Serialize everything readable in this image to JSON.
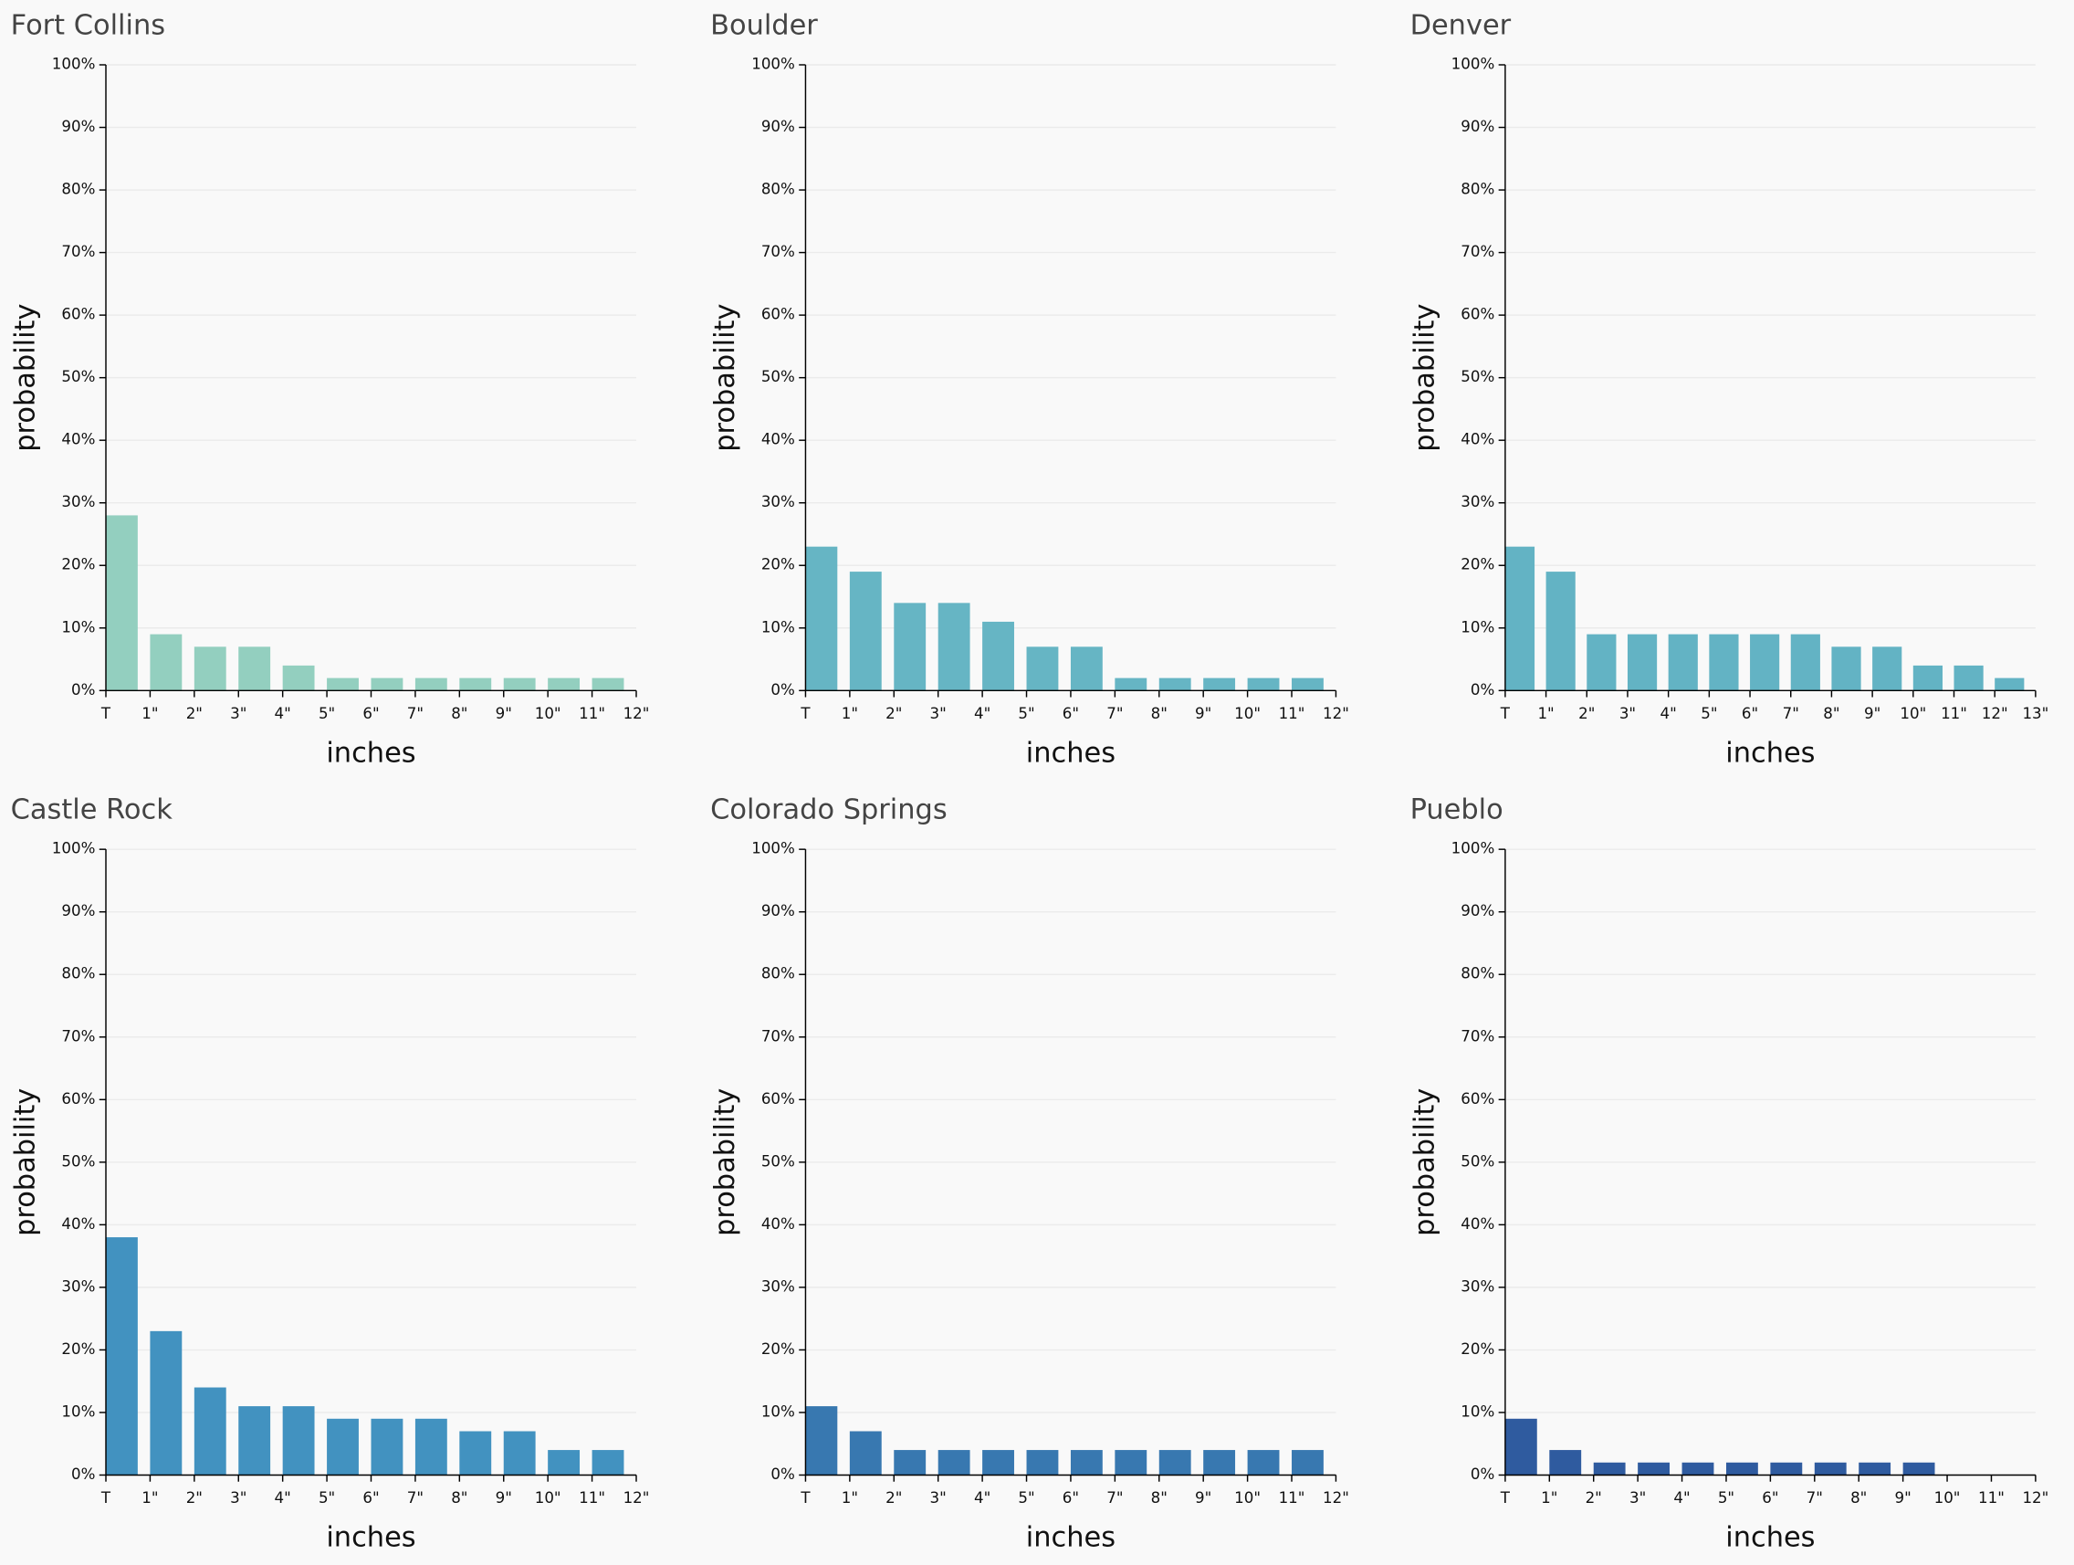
{
  "chart_data": [
    {
      "type": "histogram",
      "title": "Fort Collins",
      "xlabel": "inches",
      "ylabel": "probability",
      "color": "#93cfbf",
      "grid": true,
      "bins": [
        0,
        1,
        2,
        3,
        4,
        5,
        6,
        7,
        8,
        9,
        10,
        11,
        12
      ],
      "values": [
        28,
        9,
        7,
        7,
        4,
        2,
        2,
        2,
        2,
        2,
        2,
        2
      ],
      "xlim": [
        0,
        12
      ],
      "xticks": [
        {
          "value": 0,
          "label": "T"
        },
        {
          "value": 1,
          "label": "1\""
        },
        {
          "value": 2,
          "label": "2\""
        },
        {
          "value": 3,
          "label": "3\""
        },
        {
          "value": 4,
          "label": "4\""
        },
        {
          "value": 5,
          "label": "5\""
        },
        {
          "value": 6,
          "label": "6\""
        },
        {
          "value": 7,
          "label": "7\""
        },
        {
          "value": 8,
          "label": "8\""
        },
        {
          "value": 9,
          "label": "9\""
        },
        {
          "value": 10,
          "label": "10\""
        },
        {
          "value": 11,
          "label": "11\""
        },
        {
          "value": 12,
          "label": "12\""
        }
      ],
      "ylim": [
        0,
        100
      ],
      "yticks": [
        {
          "value": 0,
          "label": "0%"
        },
        {
          "value": 10,
          "label": "10%"
        },
        {
          "value": 20,
          "label": "20%"
        },
        {
          "value": 30,
          "label": "30%"
        },
        {
          "value": 40,
          "label": "40%"
        },
        {
          "value": 50,
          "label": "50%"
        },
        {
          "value": 60,
          "label": "60%"
        },
        {
          "value": 70,
          "label": "70%"
        },
        {
          "value": 80,
          "label": "80%"
        },
        {
          "value": 90,
          "label": "90%"
        },
        {
          "value": 100,
          "label": "100%"
        }
      ]
    },
    {
      "type": "histogram",
      "title": "Boulder",
      "xlabel": "inches",
      "ylabel": "probability",
      "color": "#66b5c4",
      "grid": true,
      "bins": [
        0,
        1,
        2,
        3,
        4,
        5,
        6,
        7,
        8,
        9,
        10,
        11,
        12
      ],
      "values": [
        23,
        19,
        14,
        14,
        11,
        7,
        7,
        2,
        2,
        2,
        2,
        2
      ],
      "xlim": [
        0,
        12
      ],
      "xticks": [
        {
          "value": 0,
          "label": "T"
        },
        {
          "value": 1,
          "label": "1\""
        },
        {
          "value": 2,
          "label": "2\""
        },
        {
          "value": 3,
          "label": "3\""
        },
        {
          "value": 4,
          "label": "4\""
        },
        {
          "value": 5,
          "label": "5\""
        },
        {
          "value": 6,
          "label": "6\""
        },
        {
          "value": 7,
          "label": "7\""
        },
        {
          "value": 8,
          "label": "8\""
        },
        {
          "value": 9,
          "label": "9\""
        },
        {
          "value": 10,
          "label": "10\""
        },
        {
          "value": 11,
          "label": "11\""
        },
        {
          "value": 12,
          "label": "12\""
        }
      ],
      "ylim": [
        0,
        100
      ],
      "yticks": [
        {
          "value": 0,
          "label": "0%"
        },
        {
          "value": 10,
          "label": "10%"
        },
        {
          "value": 20,
          "label": "20%"
        },
        {
          "value": 30,
          "label": "30%"
        },
        {
          "value": 40,
          "label": "40%"
        },
        {
          "value": 50,
          "label": "50%"
        },
        {
          "value": 60,
          "label": "60%"
        },
        {
          "value": 70,
          "label": "70%"
        },
        {
          "value": 80,
          "label": "80%"
        },
        {
          "value": 90,
          "label": "90%"
        },
        {
          "value": 100,
          "label": "100%"
        }
      ]
    },
    {
      "type": "histogram",
      "title": "Denver",
      "xlabel": "inches",
      "ylabel": "probability",
      "color": "#63b3c4",
      "grid": true,
      "bins": [
        0,
        1,
        2,
        3,
        4,
        5,
        6,
        7,
        8,
        9,
        10,
        11,
        12,
        13
      ],
      "values": [
        23,
        19,
        9,
        9,
        9,
        9,
        9,
        9,
        7,
        7,
        4,
        4,
        2
      ],
      "xlim": [
        0,
        13
      ],
      "xticks": [
        {
          "value": 0,
          "label": "T"
        },
        {
          "value": 1,
          "label": "1\""
        },
        {
          "value": 2,
          "label": "2\""
        },
        {
          "value": 3,
          "label": "3\""
        },
        {
          "value": 4,
          "label": "4\""
        },
        {
          "value": 5,
          "label": "5\""
        },
        {
          "value": 6,
          "label": "6\""
        },
        {
          "value": 7,
          "label": "7\""
        },
        {
          "value": 8,
          "label": "8\""
        },
        {
          "value": 9,
          "label": "9\""
        },
        {
          "value": 10,
          "label": "10\""
        },
        {
          "value": 11,
          "label": "11\""
        },
        {
          "value": 12,
          "label": "12\""
        },
        {
          "value": 13,
          "label": "13\""
        }
      ],
      "ylim": [
        0,
        100
      ],
      "yticks": [
        {
          "value": 0,
          "label": "0%"
        },
        {
          "value": 10,
          "label": "10%"
        },
        {
          "value": 20,
          "label": "20%"
        },
        {
          "value": 30,
          "label": "30%"
        },
        {
          "value": 40,
          "label": "40%"
        },
        {
          "value": 50,
          "label": "50%"
        },
        {
          "value": 60,
          "label": "60%"
        },
        {
          "value": 70,
          "label": "70%"
        },
        {
          "value": 80,
          "label": "80%"
        },
        {
          "value": 90,
          "label": "90%"
        },
        {
          "value": 100,
          "label": "100%"
        }
      ]
    },
    {
      "type": "histogram",
      "title": "Castle Rock",
      "xlabel": "inches",
      "ylabel": "probability",
      "color": "#4292c0",
      "grid": true,
      "bins": [
        0,
        1,
        2,
        3,
        4,
        5,
        6,
        7,
        8,
        9,
        10,
        11,
        12
      ],
      "values": [
        38,
        23,
        14,
        11,
        11,
        9,
        9,
        9,
        7,
        7,
        4,
        4
      ],
      "xlim": [
        0,
        12
      ],
      "xticks": [
        {
          "value": 0,
          "label": "T"
        },
        {
          "value": 1,
          "label": "1\""
        },
        {
          "value": 2,
          "label": "2\""
        },
        {
          "value": 3,
          "label": "3\""
        },
        {
          "value": 4,
          "label": "4\""
        },
        {
          "value": 5,
          "label": "5\""
        },
        {
          "value": 6,
          "label": "6\""
        },
        {
          "value": 7,
          "label": "7\""
        },
        {
          "value": 8,
          "label": "8\""
        },
        {
          "value": 9,
          "label": "9\""
        },
        {
          "value": 10,
          "label": "10\""
        },
        {
          "value": 11,
          "label": "11\""
        },
        {
          "value": 12,
          "label": "12\""
        }
      ],
      "ylim": [
        0,
        100
      ],
      "yticks": [
        {
          "value": 0,
          "label": "0%"
        },
        {
          "value": 10,
          "label": "10%"
        },
        {
          "value": 20,
          "label": "20%"
        },
        {
          "value": 30,
          "label": "30%"
        },
        {
          "value": 40,
          "label": "40%"
        },
        {
          "value": 50,
          "label": "50%"
        },
        {
          "value": 60,
          "label": "60%"
        },
        {
          "value": 70,
          "label": "70%"
        },
        {
          "value": 80,
          "label": "80%"
        },
        {
          "value": 90,
          "label": "90%"
        },
        {
          "value": 100,
          "label": "100%"
        }
      ]
    },
    {
      "type": "histogram",
      "title": "Colorado Springs",
      "xlabel": "inches",
      "ylabel": "probability",
      "color": "#3878b0",
      "grid": true,
      "bins": [
        0,
        1,
        2,
        3,
        4,
        5,
        6,
        7,
        8,
        9,
        10,
        11,
        12
      ],
      "values": [
        11,
        7,
        4,
        4,
        4,
        4,
        4,
        4,
        4,
        4,
        4,
        4
      ],
      "xlim": [
        0,
        12
      ],
      "xticks": [
        {
          "value": 0,
          "label": "T"
        },
        {
          "value": 1,
          "label": "1\""
        },
        {
          "value": 2,
          "label": "2\""
        },
        {
          "value": 3,
          "label": "3\""
        },
        {
          "value": 4,
          "label": "4\""
        },
        {
          "value": 5,
          "label": "5\""
        },
        {
          "value": 6,
          "label": "6\""
        },
        {
          "value": 7,
          "label": "7\""
        },
        {
          "value": 8,
          "label": "8\""
        },
        {
          "value": 9,
          "label": "9\""
        },
        {
          "value": 10,
          "label": "10\""
        },
        {
          "value": 11,
          "label": "11\""
        },
        {
          "value": 12,
          "label": "12\""
        }
      ],
      "ylim": [
        0,
        100
      ],
      "yticks": [
        {
          "value": 0,
          "label": "0%"
        },
        {
          "value": 10,
          "label": "10%"
        },
        {
          "value": 20,
          "label": "20%"
        },
        {
          "value": 30,
          "label": "30%"
        },
        {
          "value": 40,
          "label": "40%"
        },
        {
          "value": 50,
          "label": "50%"
        },
        {
          "value": 60,
          "label": "60%"
        },
        {
          "value": 70,
          "label": "70%"
        },
        {
          "value": 80,
          "label": "80%"
        },
        {
          "value": 90,
          "label": "90%"
        },
        {
          "value": 100,
          "label": "100%"
        }
      ]
    },
    {
      "type": "histogram",
      "title": "Pueblo",
      "xlabel": "inches",
      "ylabel": "probability",
      "color": "#2f5b9f",
      "grid": true,
      "bins": [
        0,
        1,
        2,
        3,
        4,
        5,
        6,
        7,
        8,
        9,
        10
      ],
      "values": [
        9,
        4,
        2,
        2,
        2,
        2,
        2,
        2,
        2,
        2
      ],
      "xlim": [
        0,
        12
      ],
      "xticks": [
        {
          "value": 0,
          "label": "T"
        },
        {
          "value": 1,
          "label": "1\""
        },
        {
          "value": 2,
          "label": "2\""
        },
        {
          "value": 3,
          "label": "3\""
        },
        {
          "value": 4,
          "label": "4\""
        },
        {
          "value": 5,
          "label": "5\""
        },
        {
          "value": 6,
          "label": "6\""
        },
        {
          "value": 7,
          "label": "7\""
        },
        {
          "value": 8,
          "label": "8\""
        },
        {
          "value": 9,
          "label": "9\""
        },
        {
          "value": 10,
          "label": "10\""
        },
        {
          "value": 11,
          "label": "11\""
        },
        {
          "value": 12,
          "label": "12\""
        }
      ],
      "ylim": [
        0,
        100
      ],
      "yticks": [
        {
          "value": 0,
          "label": "0%"
        },
        {
          "value": 10,
          "label": "10%"
        },
        {
          "value": 20,
          "label": "20%"
        },
        {
          "value": 30,
          "label": "30%"
        },
        {
          "value": 40,
          "label": "40%"
        },
        {
          "value": 50,
          "label": "50%"
        },
        {
          "value": 60,
          "label": "60%"
        },
        {
          "value": 70,
          "label": "70%"
        },
        {
          "value": 80,
          "label": "80%"
        },
        {
          "value": 90,
          "label": "90%"
        },
        {
          "value": 100,
          "label": "100%"
        }
      ]
    }
  ]
}
